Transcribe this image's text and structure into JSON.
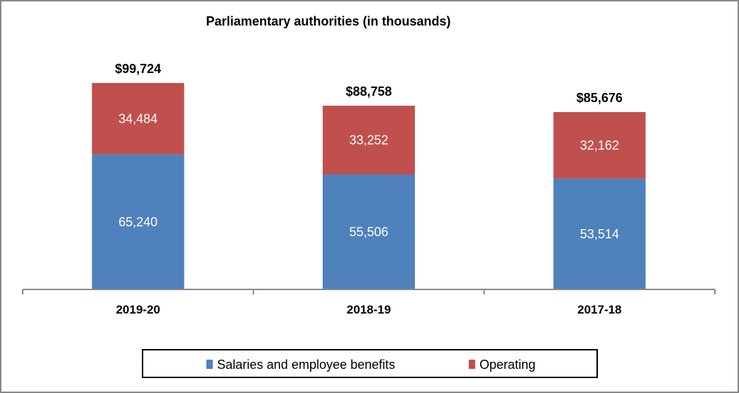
{
  "chart_data": {
    "type": "bar",
    "stacked": true,
    "title": "Parliamentary authorities (in thousands)",
    "categories": [
      "2019-20",
      "2018-19",
      "2017-18"
    ],
    "series": [
      {
        "name": "Salaries and employee benefits",
        "values": [
          65240,
          55506,
          53514
        ],
        "labels": [
          "65,240",
          "55,506",
          "53,514"
        ],
        "color": "#4F81BD"
      },
      {
        "name": "Operating",
        "values": [
          34484,
          33252,
          32162
        ],
        "labels": [
          "34,484",
          "33,252",
          "32,162"
        ],
        "color": "#C0504D"
      }
    ],
    "totals": [
      "$99,724",
      "$88,758",
      "$85,676"
    ],
    "ylim": [
      0,
      99724
    ],
    "grid": false,
    "legend_position": "bottom"
  }
}
